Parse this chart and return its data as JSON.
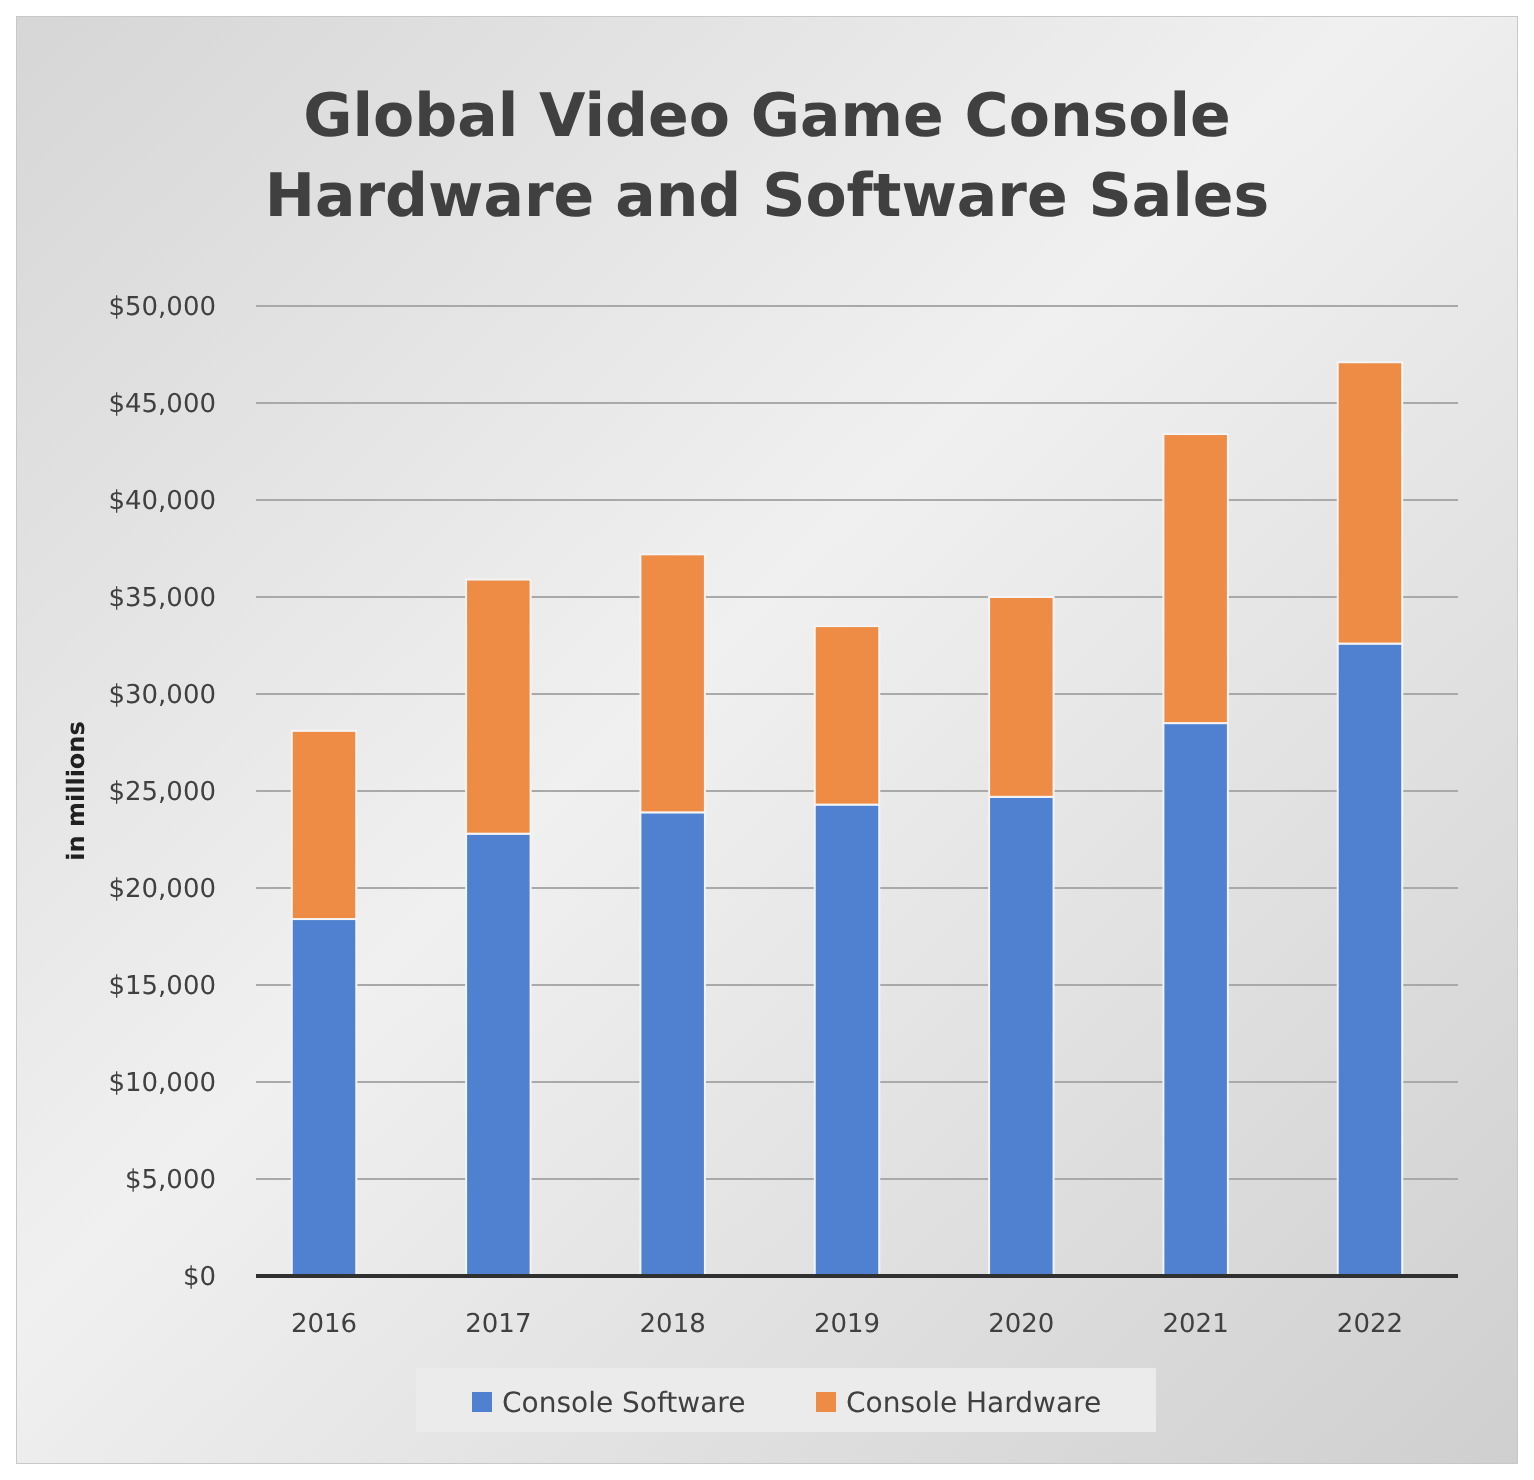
{
  "chart_data": {
    "type": "bar",
    "title": "Global Video Game Console Hardware and Software Sales",
    "ylabel": "in millions",
    "categories": [
      "2016",
      "2017",
      "2018",
      "2019",
      "2020",
      "2021",
      "2022"
    ],
    "series": [
      {
        "name": "Console Software",
        "color": "#4f81d0",
        "values": [
          18400,
          22800,
          23900,
          24300,
          24700,
          28500,
          32600
        ]
      },
      {
        "name": "Console Hardware",
        "color": "#ee8c45",
        "values": [
          9700,
          13100,
          13300,
          9200,
          10300,
          14900,
          14500
        ]
      }
    ],
    "stacked": true,
    "ylim": [
      0,
      50000
    ],
    "yticks": [
      {
        "value": 0,
        "label": "$0"
      },
      {
        "value": 5000,
        "label": "$5,000"
      },
      {
        "value": 10000,
        "label": "$10,000"
      },
      {
        "value": 15000,
        "label": "$15,000"
      },
      {
        "value": 20000,
        "label": "$20,000"
      },
      {
        "value": 25000,
        "label": "$25,000"
      },
      {
        "value": 30000,
        "label": "$30,000"
      },
      {
        "value": 35000,
        "label": "$35,000"
      },
      {
        "value": 40000,
        "label": "$40,000"
      },
      {
        "value": 45000,
        "label": "$45,000"
      },
      {
        "value": 50000,
        "label": "$50,000"
      }
    ],
    "grid": "y",
    "legend": "bottom"
  }
}
